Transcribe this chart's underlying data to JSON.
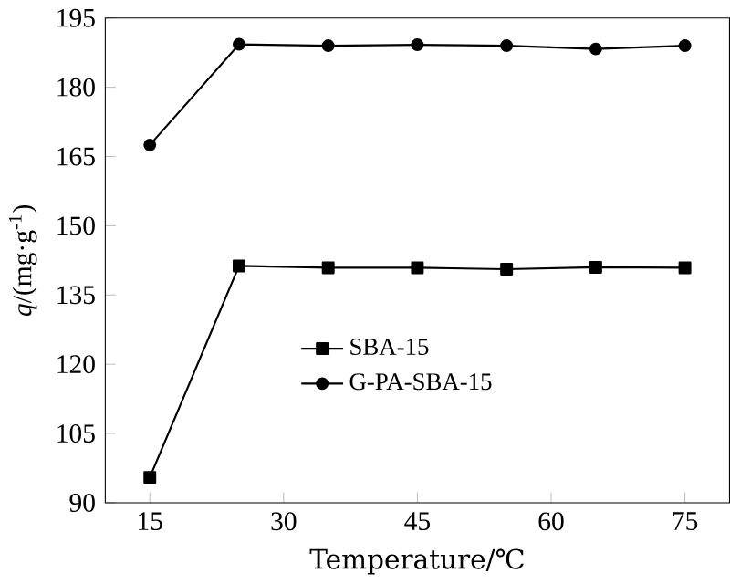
{
  "chart_data": {
    "type": "line",
    "xlabel": "Temperature/℃",
    "ylabel": "*q*/(mg·g$^{-1}$)",
    "x": [
      15,
      25,
      35,
      45,
      55,
      65,
      75
    ],
    "series": [
      {
        "name": "SBA-15",
        "color": "#000000",
        "marker": "square",
        "values": [
          95.5,
          141.3,
          140.9,
          140.9,
          140.6,
          141.0,
          140.9
        ]
      },
      {
        "name": "G-PA-SBA-15",
        "color": "#000000",
        "marker": "circle",
        "values": [
          167.5,
          189.3,
          189.0,
          189.2,
          189.0,
          188.3,
          189.0
        ]
      }
    ],
    "xlim": [
      10,
      80
    ],
    "ylim": [
      90,
      195
    ],
    "xticks": [
      15,
      30,
      45,
      60,
      75
    ],
    "yticks": [
      90,
      105,
      120,
      135,
      150,
      165,
      180,
      195
    ],
    "legend": "left",
    "grid": false,
    "line_style": "solid"
  }
}
